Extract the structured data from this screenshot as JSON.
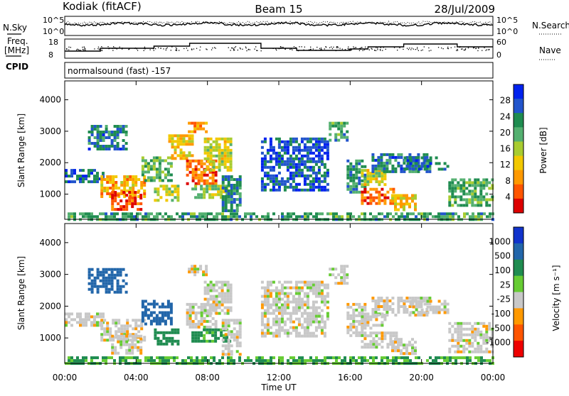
{
  "header": {
    "station": "Kodiak (fitACF)",
    "beam": "Beam 15",
    "date": "28/Jul/2009"
  },
  "top_panel_labels": {
    "nsky": "N.Sky",
    "nsearch": "N.Search",
    "freq": "Freq.",
    "freq_unit": "[MHz]",
    "nave": "Nave",
    "cpid": "CPID",
    "cpid_value": "normalsound (fast) -157",
    "noise_ticks": [
      "10^5",
      "10^0"
    ],
    "freq_ticks": [
      "18",
      "8"
    ],
    "nave_ticks": [
      "60",
      "0"
    ]
  },
  "chart_data": [
    {
      "type": "heatmap",
      "quantity": "Power",
      "ylabel": "Slant Range [km]",
      "xlabel": "Time UT",
      "x_ticks": [
        "00:00",
        "04:00",
        "08:00",
        "12:00",
        "16:00",
        "20:00",
        "00:00"
      ],
      "xlim_hours": [
        0,
        24
      ],
      "y_ticks": [
        1000,
        2000,
        3000,
        4000
      ],
      "ylim": [
        200,
        4600
      ],
      "colorbar_label": "Power [dB]",
      "colorbar_ticks": [
        "28",
        "24",
        "20",
        "16",
        "12",
        "8",
        "4"
      ],
      "colorbar_colors": [
        "#0022ee",
        "#2255cc",
        "#1f8c50",
        "#54b070",
        "#a8cc30",
        "#f2c800",
        "#ff9900",
        "#ff5500",
        "#dd0000"
      ],
      "echo_regions": [
        {
          "t": [
            0.0,
            24.0
          ],
          "r": [
            200,
            420
          ],
          "p": 10
        },
        {
          "t": [
            0.0,
            2.2
          ],
          "r": [
            1400,
            1800
          ],
          "p": 6
        },
        {
          "t": [
            1.3,
            3.5
          ],
          "r": [
            2400,
            3200
          ],
          "p": 7
        },
        {
          "t": [
            2.0,
            4.4
          ],
          "r": [
            900,
            1600
          ],
          "p": 20
        },
        {
          "t": [
            2.6,
            4.2
          ],
          "r": [
            500,
            1100
          ],
          "p": 26
        },
        {
          "t": [
            4.3,
            5.9
          ],
          "r": [
            1400,
            2200
          ],
          "p": 12
        },
        {
          "t": [
            5.0,
            6.3
          ],
          "r": [
            800,
            1300
          ],
          "p": 16
        },
        {
          "t": [
            5.8,
            7.2
          ],
          "r": [
            2100,
            2900
          ],
          "p": 18
        },
        {
          "t": [
            6.8,
            8.5
          ],
          "r": [
            1300,
            2100
          ],
          "p": 24
        },
        {
          "t": [
            6.9,
            8.0
          ],
          "r": [
            3000,
            3300
          ],
          "p": 22
        },
        {
          "t": [
            7.1,
            9.3
          ],
          "r": [
            900,
            1300
          ],
          "p": 14
        },
        {
          "t": [
            7.8,
            9.3
          ],
          "r": [
            1800,
            2800
          ],
          "p": 16
        },
        {
          "t": [
            8.8,
            9.8
          ],
          "r": [
            500,
            1600
          ],
          "p": 8
        },
        {
          "t": [
            11.0,
            14.8
          ],
          "r": [
            1100,
            2800
          ],
          "p": 5
        },
        {
          "t": [
            14.8,
            15.8
          ],
          "r": [
            2700,
            3300
          ],
          "p": 10
        },
        {
          "t": [
            15.8,
            16.8
          ],
          "r": [
            1100,
            2100
          ],
          "p": 9
        },
        {
          "t": [
            16.6,
            18.0
          ],
          "r": [
            1300,
            1800
          ],
          "p": 16
        },
        {
          "t": [
            16.6,
            18.6
          ],
          "r": [
            700,
            1200
          ],
          "p": 24
        },
        {
          "t": [
            17.2,
            20.5
          ],
          "r": [
            1700,
            2300
          ],
          "p": 7
        },
        {
          "t": [
            18.3,
            19.6
          ],
          "r": [
            500,
            1000
          ],
          "p": 18
        },
        {
          "t": [
            19.0,
            21.5
          ],
          "r": [
            1800,
            2200
          ],
          "p": 6
        },
        {
          "t": [
            21.5,
            24.0
          ],
          "r": [
            600,
            1500
          ],
          "p": 11
        }
      ]
    },
    {
      "type": "heatmap",
      "quantity": "Velocity",
      "ylabel": "Slant Range [km]",
      "xlabel": "Time UT",
      "x_ticks": [
        "00:00",
        "04:00",
        "08:00",
        "12:00",
        "16:00",
        "20:00",
        "00:00"
      ],
      "xlim_hours": [
        0,
        24
      ],
      "y_ticks": [
        1000,
        2000,
        3000,
        4000
      ],
      "ylim": [
        200,
        4600
      ],
      "colorbar_label": "Velocity [m s⁻¹]",
      "colorbar_ticks": [
        "1000",
        "500",
        "100",
        "25",
        "-25",
        "-100",
        "-500",
        "-1000"
      ],
      "colorbar_colors": [
        "#1133cc",
        "#2266aa",
        "#1f8c50",
        "#66cc33",
        "#c8c8c8",
        "#ff9900",
        "#ff5500",
        "#ee0000"
      ],
      "echo_regions": [
        {
          "t": [
            0.0,
            24.0
          ],
          "r": [
            200,
            420
          ],
          "v": 60
        },
        {
          "t": [
            0.0,
            2.2
          ],
          "r": [
            1400,
            1800
          ],
          "v": 0
        },
        {
          "t": [
            1.3,
            3.5
          ],
          "r": [
            2400,
            3200
          ],
          "v": 600
        },
        {
          "t": [
            2.0,
            4.4
          ],
          "r": [
            900,
            1600
          ],
          "v": 0
        },
        {
          "t": [
            2.6,
            4.2
          ],
          "r": [
            500,
            1100
          ],
          "v": 0
        },
        {
          "t": [
            4.3,
            5.9
          ],
          "r": [
            1400,
            2200
          ],
          "v": 600
        },
        {
          "t": [
            5.0,
            6.3
          ],
          "r": [
            800,
            1300
          ],
          "v": 150
        },
        {
          "t": [
            6.8,
            8.5
          ],
          "r": [
            1300,
            2100
          ],
          "v": 0
        },
        {
          "t": [
            6.9,
            8.0
          ],
          "r": [
            3000,
            3300
          ],
          "v": 0
        },
        {
          "t": [
            7.1,
            9.3
          ],
          "r": [
            900,
            1300
          ],
          "v": 80
        },
        {
          "t": [
            7.8,
            9.3
          ],
          "r": [
            1800,
            2800
          ],
          "v": 0
        },
        {
          "t": [
            8.8,
            9.8
          ],
          "r": [
            500,
            1600
          ],
          "v": 0
        },
        {
          "t": [
            11.0,
            14.8
          ],
          "r": [
            1100,
            2800
          ],
          "v": 0
        },
        {
          "t": [
            14.8,
            15.8
          ],
          "r": [
            2700,
            3300
          ],
          "v": 0
        },
        {
          "t": [
            15.8,
            16.8
          ],
          "r": [
            1100,
            2100
          ],
          "v": 0
        },
        {
          "t": [
            16.6,
            18.0
          ],
          "r": [
            1300,
            1800
          ],
          "v": 0
        },
        {
          "t": [
            16.6,
            18.6
          ],
          "r": [
            700,
            1200
          ],
          "v": 0
        },
        {
          "t": [
            17.2,
            20.5
          ],
          "r": [
            1700,
            2300
          ],
          "v": 0
        },
        {
          "t": [
            18.3,
            19.6
          ],
          "r": [
            500,
            1000
          ],
          "v": 0
        },
        {
          "t": [
            19.0,
            21.5
          ],
          "r": [
            1800,
            2200
          ],
          "v": 0
        },
        {
          "t": [
            21.5,
            24.0
          ],
          "r": [
            600,
            1500
          ],
          "v": 0
        }
      ]
    }
  ]
}
